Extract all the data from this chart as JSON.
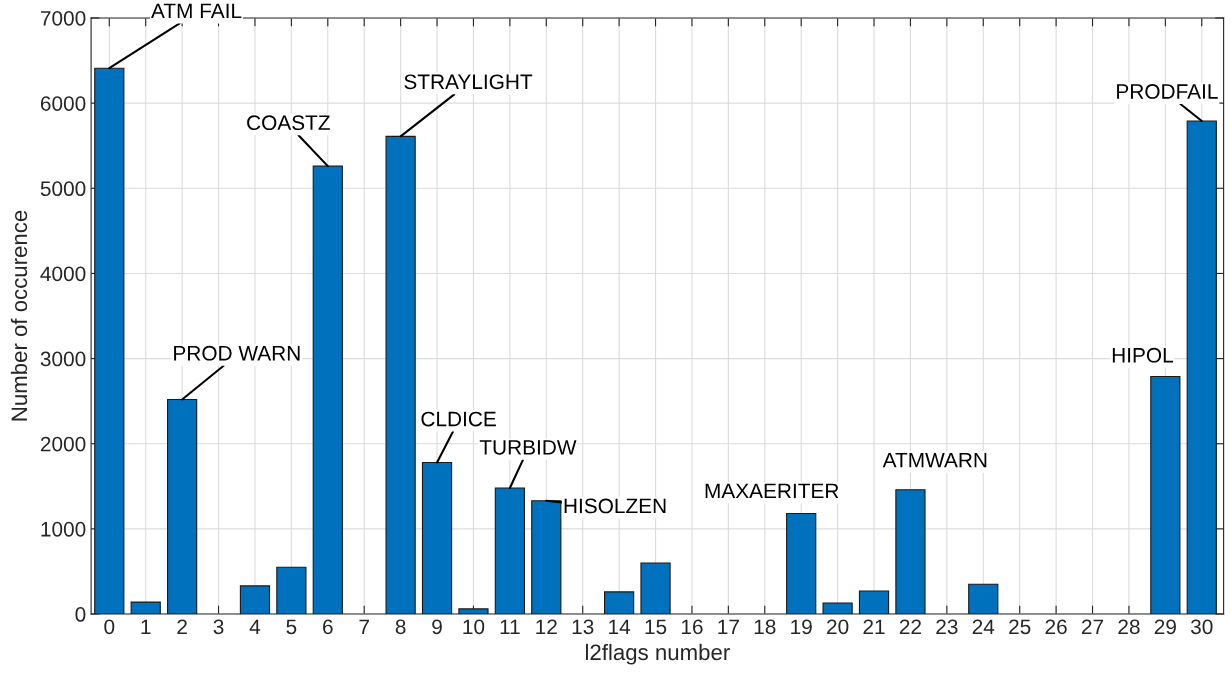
{
  "chart_data": {
    "type": "bar",
    "xlabel": "l2flags number",
    "ylabel": "Number of occurence",
    "x": [
      0,
      1,
      2,
      3,
      4,
      5,
      6,
      7,
      8,
      9,
      10,
      11,
      12,
      13,
      14,
      15,
      16,
      17,
      18,
      19,
      20,
      21,
      22,
      23,
      24,
      25,
      26,
      27,
      28,
      29,
      30
    ],
    "values": [
      6410,
      140,
      2520,
      0,
      330,
      550,
      5260,
      0,
      5610,
      1780,
      60,
      1480,
      1330,
      0,
      260,
      600,
      0,
      0,
      0,
      1180,
      130,
      270,
      1460,
      0,
      350,
      0,
      0,
      0,
      0,
      2790,
      5790
    ],
    "color": "#0072bd",
    "xlim": [
      -0.5,
      30.6
    ],
    "xticks": [
      0,
      1,
      2,
      3,
      4,
      5,
      6,
      7,
      8,
      9,
      10,
      11,
      12,
      13,
      14,
      15,
      16,
      17,
      18,
      19,
      20,
      21,
      22,
      23,
      24,
      25,
      26,
      27,
      28,
      29,
      30
    ],
    "ylim": [
      0,
      7000
    ],
    "yticks": [
      0,
      1000,
      2000,
      3000,
      4000,
      5000,
      6000,
      7000
    ],
    "grid": true,
    "annotations": [
      {
        "text": "ATM FAIL",
        "x": 0,
        "y": 6410
      },
      {
        "text": "PROD WARN",
        "x": 2,
        "y": 2520
      },
      {
        "text": "COASTZ",
        "x": 6,
        "y": 5260
      },
      {
        "text": "STRAYLIGHT",
        "x": 8,
        "y": 5610
      },
      {
        "text": "CLDICE",
        "x": 9,
        "y": 1780
      },
      {
        "text": "TURBIDW",
        "x": 11,
        "y": 1480
      },
      {
        "text": "HISOLZEN",
        "x": 12,
        "y": 1330
      },
      {
        "text": "MAXAERITER",
        "x": 19,
        "y": 1180
      },
      {
        "text": "ATMWARN",
        "x": 22,
        "y": 1460
      },
      {
        "text": "HIPOL",
        "x": 29,
        "y": 2790
      },
      {
        "text": "PRODFAIL",
        "x": 30,
        "y": 5790
      }
    ]
  }
}
